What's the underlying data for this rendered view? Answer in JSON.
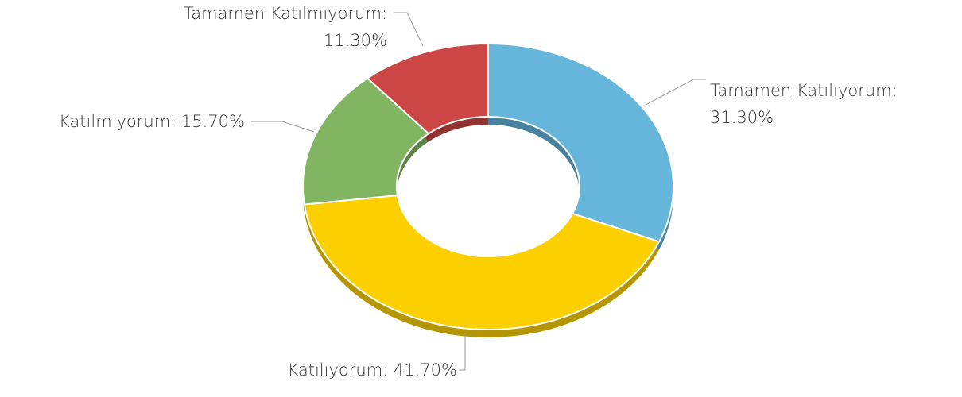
{
  "chart_data": {
    "type": "donut",
    "categories": [
      "Tamamen Katılıyorum:",
      "Katılıyorum:",
      "Katılmıyorum:",
      "Tamamen Katılmıyorum:"
    ],
    "values": [
      31.3,
      41.7,
      15.7,
      11.3
    ],
    "value_labels": [
      "31.30%",
      "41.70%",
      "15.70%",
      "11.30%"
    ],
    "colors": [
      "#66b5db",
      "#fcd000",
      "#82b562",
      "#cc4646"
    ]
  }
}
